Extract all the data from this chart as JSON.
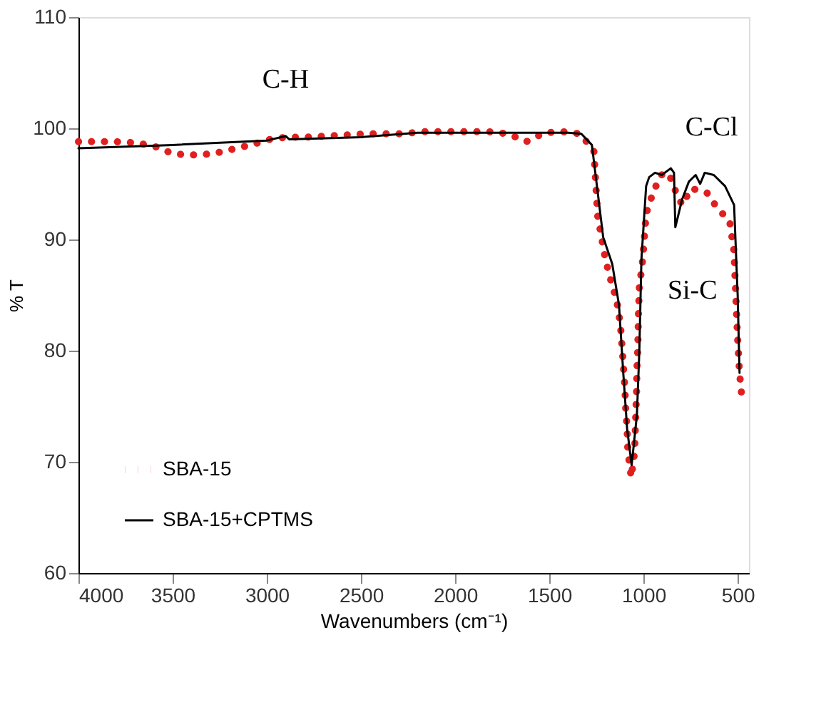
{
  "chart_data": {
    "type": "line",
    "xlabel": "Wavenumbers (cm⁻¹)",
    "ylabel": "% T",
    "xlim": [
      4000,
      440
    ],
    "ylim": [
      60,
      110
    ],
    "xticks": [
      4000,
      3500,
      3000,
      2500,
      2000,
      1500,
      1000,
      500
    ],
    "yticks": [
      60,
      70,
      80,
      90,
      100,
      110
    ],
    "grid": false,
    "legend": "bottom left",
    "series": [
      {
        "name": "SBA-15",
        "color": "#e02020",
        "line_style": "dotted",
        "x": [
          4000,
          3900,
          3804,
          3696,
          3600,
          3497,
          3396,
          3288,
          3186,
          3085,
          2984,
          2893,
          2797,
          2689,
          2581,
          2480,
          2376,
          2277,
          2173,
          2078,
          2006,
          1922,
          1826,
          1718,
          1622,
          1526,
          1430,
          1334,
          1263,
          1250,
          1243,
          1202,
          1173,
          1142,
          1123,
          1114,
          1107,
          1099,
          1094,
          1087,
          1083,
          1065,
          1047,
          1042,
          1037,
          1035,
          1030,
          1027,
          1022,
          1004,
          986,
          950,
          907,
          867,
          831,
          795,
          747,
          663,
          603,
          543,
          520,
          510,
          500,
          490,
          480
        ],
        "values": [
          98.8,
          98.8,
          98.8,
          98.7,
          98.4,
          97.7,
          97.6,
          97.7,
          98.1,
          98.5,
          99.0,
          99.2,
          99.2,
          99.3,
          99.4,
          99.5,
          99.5,
          99.5,
          99.7,
          99.7,
          99.7,
          99.7,
          99.7,
          99.5,
          98.8,
          99.6,
          99.7,
          99.5,
          97.9,
          94.0,
          92.1,
          88.2,
          86.3,
          84.5,
          82.4,
          80.4,
          78.7,
          76.7,
          74.6,
          73.0,
          70.9,
          68.6,
          70.9,
          73.8,
          76.2,
          78.3,
          80.4,
          83.3,
          85.7,
          88.2,
          92.3,
          94.2,
          95.8,
          96.0,
          94.4,
          93.1,
          94.6,
          94.2,
          92.7,
          91.7,
          89,
          85,
          81,
          78,
          76.2
        ]
      },
      {
        "name": "SBA-15+CPTMS",
        "color": "#000000",
        "line_style": "solid",
        "x": [
          4000,
          3500,
          3000,
          2900,
          2880,
          2500,
          2200,
          1400,
          1330,
          1274,
          1250,
          1214,
          1166,
          1130,
          1107,
          1087,
          1063,
          1035,
          1022,
          1011,
          986,
          970,
          939,
          903,
          855,
          838,
          831,
          795,
          759,
          723,
          699,
          675,
          627,
          567,
          519,
          500,
          490
        ],
        "values": [
          98.2,
          98.5,
          98.9,
          99.3,
          99.0,
          99.2,
          99.6,
          99.6,
          99.5,
          98.5,
          95.2,
          90.2,
          87.8,
          84.1,
          77.9,
          73.0,
          69.7,
          74.2,
          80.0,
          88.2,
          94.8,
          95.6,
          96.0,
          95.8,
          96.4,
          96.0,
          91.1,
          93.6,
          95.2,
          95.8,
          95.0,
          96.0,
          95.8,
          94.8,
          93.1,
          85,
          78
        ]
      }
    ],
    "annotations": [
      {
        "text": "C-H",
        "x": 2900,
        "y": 99.3
      },
      {
        "text": "C-Cl",
        "x": 699,
        "y": 95.0
      },
      {
        "text": "Si-C",
        "x": 831,
        "y": 91.1
      }
    ]
  }
}
